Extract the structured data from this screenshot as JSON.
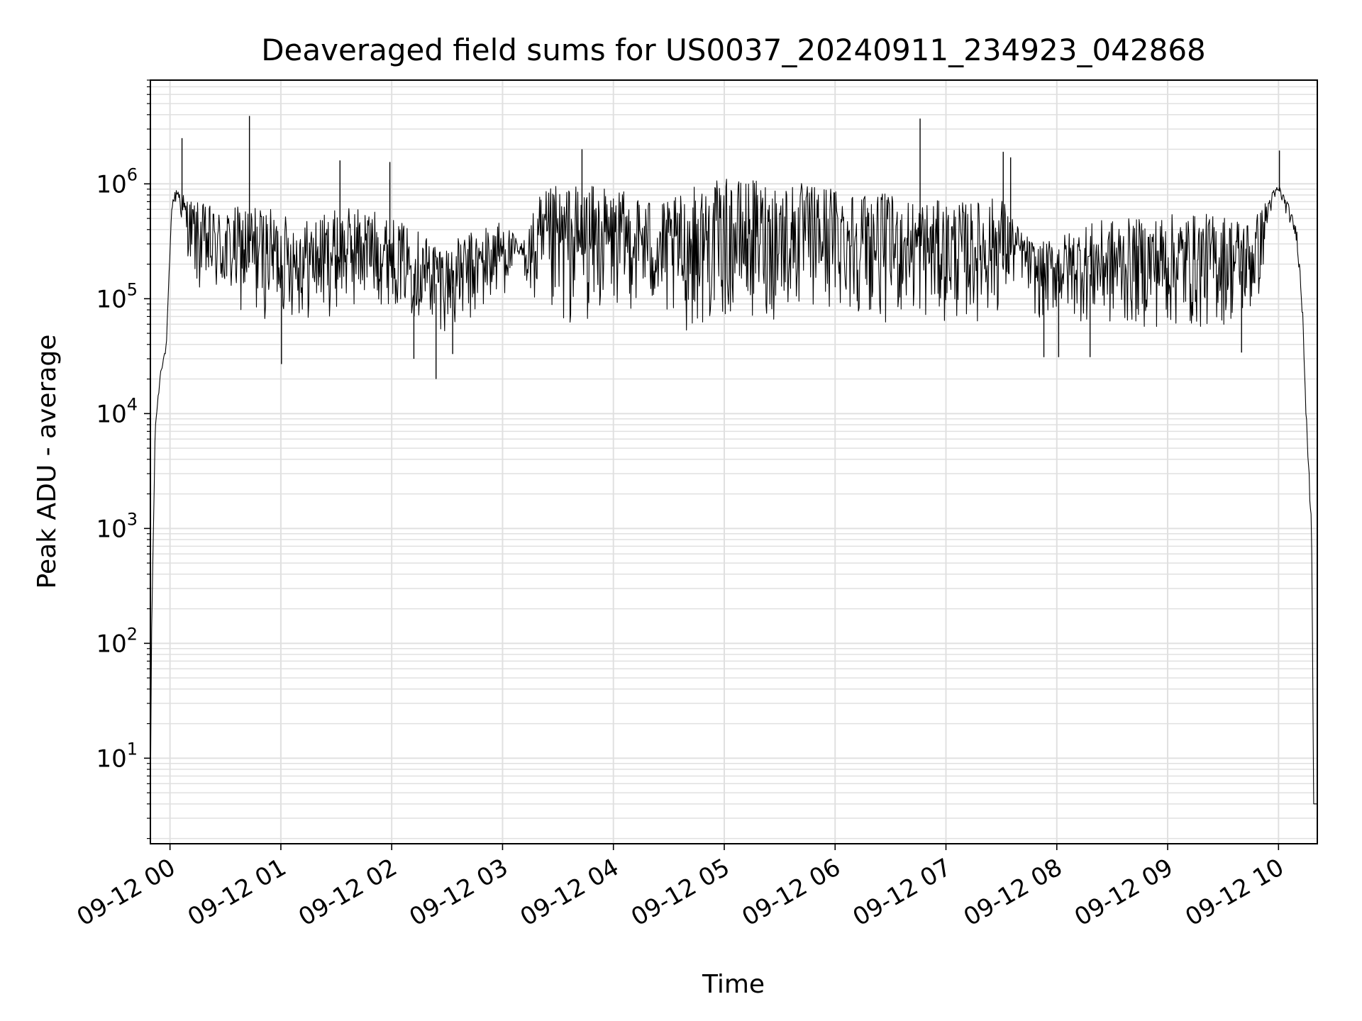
{
  "chart_data": {
    "type": "line",
    "title": "Deaveraged field sums for US0037_20240911_234923_042868",
    "xlabel": "Time",
    "ylabel": "Peak ADU - average",
    "yscale": "log",
    "ylim": [
      1.8,
      8000000
    ],
    "xlim": [
      "2024-09-11 23:49:23",
      "2024-09-12 10:21:00"
    ],
    "grid": true,
    "line_color": "#000000",
    "grid_color": "#e0e0e0",
    "xticks": [
      {
        "value": "2024-09-12 00:00",
        "label": "09-12 00"
      },
      {
        "value": "2024-09-12 01:00",
        "label": "09-12 01"
      },
      {
        "value": "2024-09-12 02:00",
        "label": "09-12 02"
      },
      {
        "value": "2024-09-12 03:00",
        "label": "09-12 03"
      },
      {
        "value": "2024-09-12 04:00",
        "label": "09-12 04"
      },
      {
        "value": "2024-09-12 05:00",
        "label": "09-12 05"
      },
      {
        "value": "2024-09-12 06:00",
        "label": "09-12 06"
      },
      {
        "value": "2024-09-12 07:00",
        "label": "09-12 07"
      },
      {
        "value": "2024-09-12 08:00",
        "label": "09-12 08"
      },
      {
        "value": "2024-09-12 09:00",
        "label": "09-12 09"
      },
      {
        "value": "2024-09-12 10:00",
        "label": "09-12 10"
      }
    ],
    "yticks": [
      {
        "value": 10,
        "base": "10",
        "exp": "1"
      },
      {
        "value": 100,
        "base": "10",
        "exp": "2"
      },
      {
        "value": 1000,
        "base": "10",
        "exp": "3"
      },
      {
        "value": 10000,
        "base": "10",
        "exp": "4"
      },
      {
        "value": 100000,
        "base": "10",
        "exp": "5"
      },
      {
        "value": 1000000,
        "base": "10",
        "exp": "6"
      }
    ],
    "envelope": {
      "x": [
        "2024-09-11 23:49:23",
        "2024-09-11 23:50:00",
        "2024-09-11 23:52:00",
        "2024-09-11 23:55:00",
        "2024-09-11 23:58:00",
        "2024-09-12 00:01:00",
        "2024-09-12 00:04:00",
        "2024-09-12 00:08:00",
        "2024-09-12 00:15:00",
        "2024-09-12 00:30:00",
        "2024-09-12 00:45:00",
        "2024-09-12 01:00:00",
        "2024-09-12 01:15:00",
        "2024-09-12 01:30:00",
        "2024-09-12 01:45:00",
        "2024-09-12 02:00:00",
        "2024-09-12 02:15:00",
        "2024-09-12 02:30:00",
        "2024-09-12 02:45:00",
        "2024-09-12 03:00:00",
        "2024-09-12 03:10:00",
        "2024-09-12 03:20:00",
        "2024-09-12 03:30:00",
        "2024-09-12 03:45:00",
        "2024-09-12 04:00:00",
        "2024-09-12 04:15:00",
        "2024-09-12 04:30:00",
        "2024-09-12 04:45:00",
        "2024-09-12 05:00:00",
        "2024-09-12 05:15:00",
        "2024-09-12 05:30:00",
        "2024-09-12 05:45:00",
        "2024-09-12 06:00:00",
        "2024-09-12 06:15:00",
        "2024-09-12 06:30:00",
        "2024-09-12 06:45:00",
        "2024-09-12 07:00:00",
        "2024-09-12 07:15:00",
        "2024-09-12 07:30:00",
        "2024-09-12 07:40:00",
        "2024-09-12 07:50:00",
        "2024-09-12 08:00:00",
        "2024-09-12 08:15:00",
        "2024-09-12 08:30:00",
        "2024-09-12 08:45:00",
        "2024-09-12 09:00:00",
        "2024-09-12 09:15:00",
        "2024-09-12 09:30:00",
        "2024-09-12 09:45:00",
        "2024-09-12 09:50:00",
        "2024-09-12 09:55:00",
        "2024-09-12 10:00:00",
        "2024-09-12 10:05:00",
        "2024-09-12 10:10:00",
        "2024-09-12 10:13:00",
        "2024-09-12 10:16:00",
        "2024-09-12 10:18:00",
        "2024-09-12 10:19:00",
        "2024-09-12 10:21:00"
      ],
      "upper": [
        4,
        120,
        8000,
        25000,
        40000,
        700000,
        1000000,
        800000,
        700000,
        600000,
        700000,
        550000,
        500000,
        600000,
        650000,
        500000,
        400000,
        300000,
        400000,
        500000,
        300000,
        800000,
        1000000,
        1000000,
        900000,
        800000,
        700000,
        1000000,
        1100000,
        1100000,
        1100000,
        1000000,
        1000000,
        900000,
        800000,
        750000,
        700000,
        700000,
        800000,
        400000,
        300000,
        350000,
        450000,
        500000,
        500000,
        550000,
        550000,
        550000,
        500000,
        600000,
        800000,
        1000000,
        700000,
        400000,
        100000,
        5000,
        1000,
        4,
        4
      ],
      "lower": [
        4,
        100,
        7000,
        22000,
        35000,
        600000,
        700000,
        300000,
        100000,
        80000,
        60000,
        70000,
        60000,
        70000,
        80000,
        90000,
        60000,
        50000,
        55000,
        100000,
        200000,
        40000,
        45000,
        60000,
        70000,
        80000,
        50000,
        50000,
        60000,
        60000,
        60000,
        70000,
        70000,
        70000,
        60000,
        60000,
        60000,
        60000,
        70000,
        150000,
        60000,
        70000,
        60000,
        50000,
        55000,
        50000,
        50000,
        55000,
        60000,
        100000,
        500000,
        800000,
        500000,
        300000,
        60000,
        3000,
        600,
        4,
        4
      ]
    },
    "spikes": [
      {
        "x": "2024-09-12 00:06:30",
        "y": 2500000
      },
      {
        "x": "2024-09-12 00:43:00",
        "y": 3900000
      },
      {
        "x": "2024-09-12 01:32:00",
        "y": 1600000
      },
      {
        "x": "2024-09-12 01:59:00",
        "y": 1550000
      },
      {
        "x": "2024-09-12 03:43:00",
        "y": 2000000
      },
      {
        "x": "2024-09-12 06:46:00",
        "y": 3700000
      },
      {
        "x": "2024-09-12 07:31:00",
        "y": 1900000
      },
      {
        "x": "2024-09-12 07:35:00",
        "y": 1700000
      },
      {
        "x": "2024-09-12 10:00:30",
        "y": 1950000
      }
    ],
    "dips": [
      {
        "x": "2024-09-12 01:00:20",
        "y": 27000
      },
      {
        "x": "2024-09-12 02:12:00",
        "y": 30000
      },
      {
        "x": "2024-09-12 02:24:00",
        "y": 20000
      },
      {
        "x": "2024-09-12 02:33:00",
        "y": 33000
      },
      {
        "x": "2024-09-12 07:53:00",
        "y": 31000
      },
      {
        "x": "2024-09-12 08:01:00",
        "y": 31000
      },
      {
        "x": "2024-09-12 08:18:00",
        "y": 31000
      },
      {
        "x": "2024-09-12 09:40:00",
        "y": 34000
      }
    ]
  }
}
